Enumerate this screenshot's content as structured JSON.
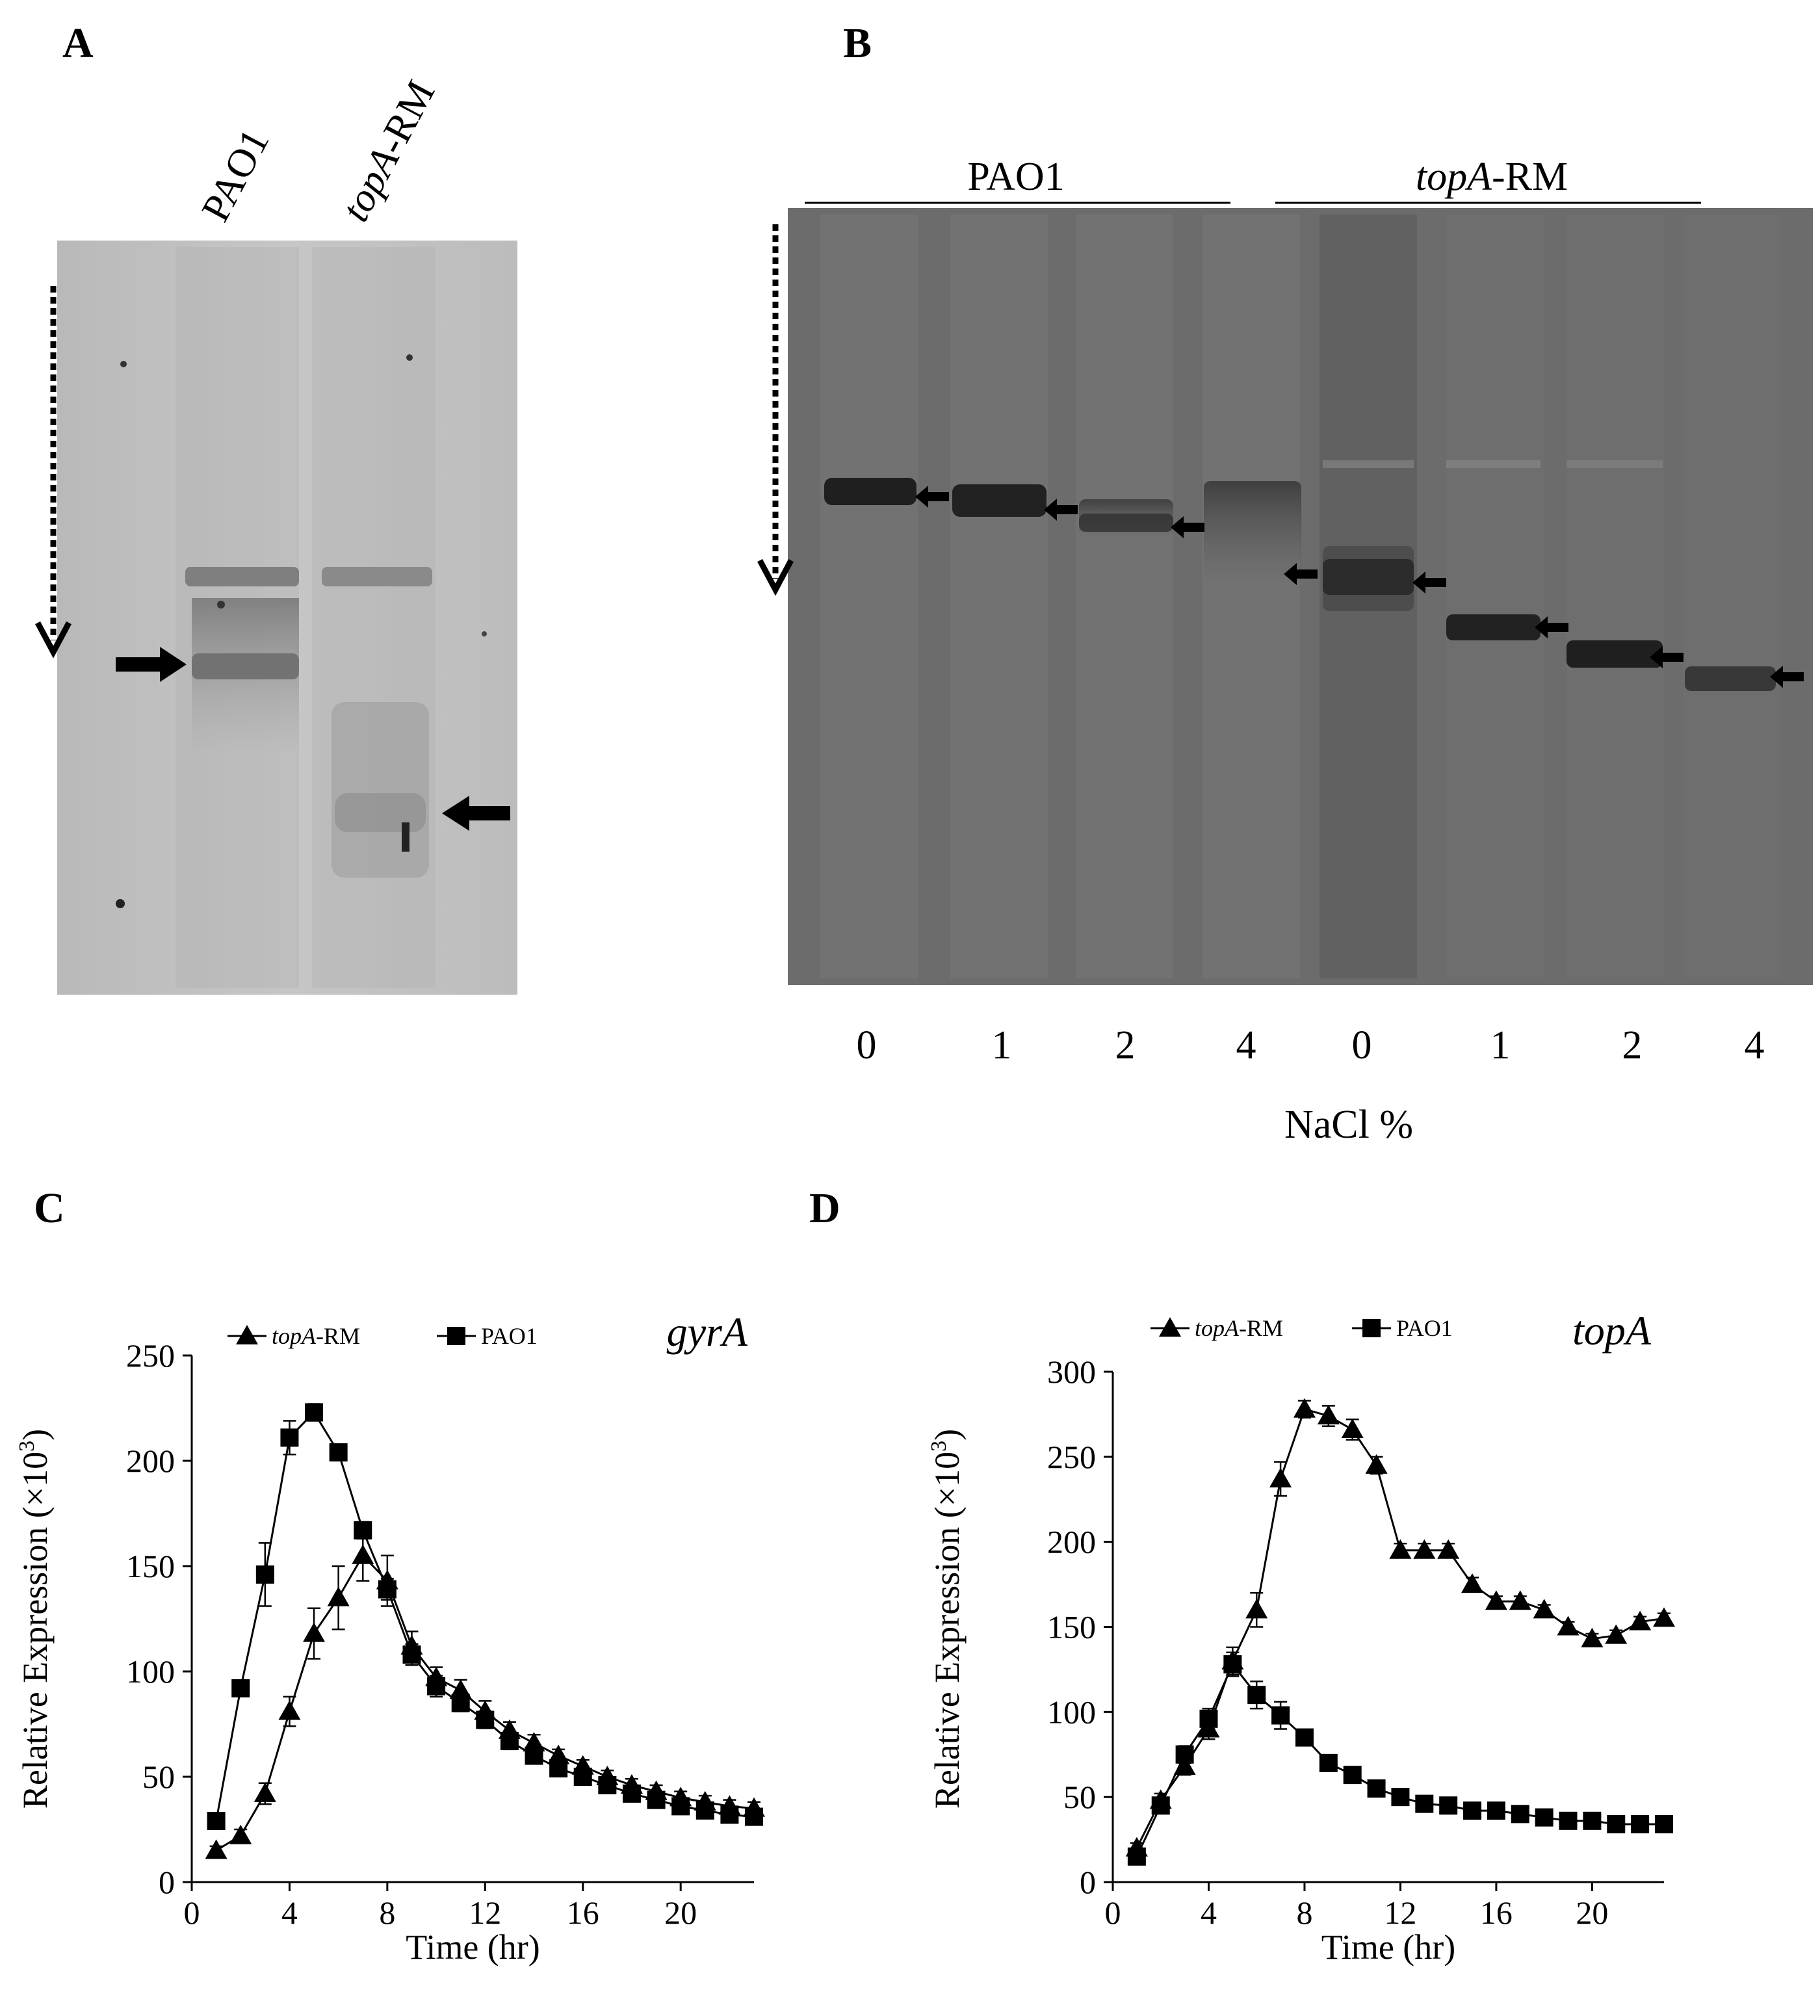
{
  "panels": {
    "A": {
      "letter": "A",
      "lane_labels": [
        {
          "italic": "",
          "rest": "PAO1"
        },
        {
          "italic": "topA",
          "rest": "-RM"
        }
      ]
    },
    "B": {
      "letter": "B",
      "groups": [
        {
          "italic": "",
          "rest": "PAO1"
        },
        {
          "italic": "topA",
          "rest": "-RM"
        }
      ],
      "lane_labels": [
        "0",
        "1",
        "2",
        "4",
        "0",
        "1",
        "2",
        "4"
      ],
      "xlabel": "NaCl %"
    },
    "C": {
      "letter": "C"
    },
    "D": {
      "letter": "D"
    }
  },
  "chart_data": [
    {
      "panel": "C",
      "type": "line",
      "gene": "gyrA",
      "xlabel": "Time (hr)",
      "ylabel_prefix": "Relative Expression (",
      "ylabel_times": "×10",
      "ylabel_exp": "3",
      "ylabel_suffix": ")",
      "xlim": [
        0,
        23
      ],
      "ylim": [
        0,
        250
      ],
      "xticks": [
        "0",
        "4",
        "8",
        "12",
        "16",
        "20"
      ],
      "xtick_values": [
        0,
        4,
        8,
        12,
        16,
        20
      ],
      "yticks": [
        "0",
        "50",
        "100",
        "150",
        "200",
        "250"
      ],
      "ytick_values": [
        0,
        50,
        100,
        150,
        200,
        250
      ],
      "legend": [
        {
          "italic": "topA",
          "rest": "-RM",
          "marker": "triangle"
        },
        {
          "italic": "",
          "rest": "PAO1",
          "marker": "square"
        }
      ],
      "series": [
        {
          "name": "topA-RM",
          "marker": "triangle",
          "x": [
            1,
            2,
            3,
            4,
            5,
            6,
            7,
            8,
            9,
            10,
            11,
            12,
            13,
            14,
            15,
            16,
            17,
            18,
            19,
            20,
            21,
            22,
            23
          ],
          "y": [
            15,
            22,
            42,
            81,
            118,
            135,
            155,
            143,
            112,
            97,
            91,
            81,
            72,
            66,
            60,
            55,
            50,
            46,
            43,
            40,
            38,
            36,
            35
          ],
          "err": [
            2,
            3,
            5,
            7,
            12,
            15,
            12,
            12,
            7,
            5,
            5,
            5,
            4,
            4,
            3,
            3,
            3,
            3,
            3,
            3,
            3,
            3,
            3
          ]
        },
        {
          "name": "PAO1",
          "marker": "square",
          "x": [
            1,
            2,
            3,
            4,
            5,
            6,
            7,
            8,
            9,
            10,
            11,
            12,
            13,
            14,
            15,
            16,
            17,
            18,
            19,
            20,
            21,
            22,
            23
          ],
          "y": [
            29,
            92,
            146,
            211,
            223,
            204,
            167,
            139,
            108,
            93,
            85,
            77,
            67,
            60,
            54,
            50,
            46,
            42,
            39,
            36,
            34,
            32,
            31
          ],
          "err": [
            2,
            3,
            15,
            8,
            4,
            3,
            4,
            5,
            5,
            5,
            4,
            4,
            4,
            3,
            3,
            3,
            3,
            3,
            3,
            3,
            3,
            3,
            3
          ]
        }
      ]
    },
    {
      "panel": "D",
      "type": "line",
      "gene": "topA",
      "xlabel": "Time (hr)",
      "ylabel_prefix": "Relative Expression (",
      "ylabel_times": "×10",
      "ylabel_exp": "3",
      "ylabel_suffix": ")",
      "xlim": [
        0,
        23
      ],
      "ylim": [
        0,
        300
      ],
      "xticks": [
        "0",
        "4",
        "8",
        "12",
        "16",
        "20"
      ],
      "xtick_values": [
        0,
        4,
        8,
        12,
        16,
        20
      ],
      "yticks": [
        "0",
        "50",
        "100",
        "150",
        "200",
        "250",
        "300"
      ],
      "ytick_values": [
        0,
        50,
        100,
        150,
        200,
        250,
        300
      ],
      "legend": [
        {
          "italic": "topA",
          "rest": "-RM",
          "marker": "triangle"
        },
        {
          "italic": "",
          "rest": "PAO1",
          "marker": "square"
        }
      ],
      "series": [
        {
          "name": "topA-RM",
          "marker": "triangle",
          "x": [
            1,
            2,
            3,
            4,
            5,
            6,
            7,
            8,
            9,
            10,
            11,
            12,
            13,
            14,
            15,
            16,
            17,
            18,
            19,
            20,
            21,
            22,
            23
          ],
          "y": [
            20,
            48,
            68,
            90,
            130,
            160,
            237,
            278,
            274,
            266,
            245,
            195,
            195,
            195,
            175,
            165,
            165,
            160,
            150,
            143,
            145,
            153,
            155
          ],
          "err": [
            3,
            4,
            5,
            6,
            8,
            10,
            10,
            5,
            6,
            6,
            5,
            4,
            4,
            4,
            4,
            3,
            3,
            3,
            3,
            3,
            3,
            3,
            3
          ]
        },
        {
          "name": "PAO1",
          "marker": "square",
          "x": [
            1,
            2,
            3,
            4,
            5,
            6,
            7,
            8,
            9,
            10,
            11,
            12,
            13,
            14,
            15,
            16,
            17,
            18,
            19,
            20,
            21,
            22,
            23
          ],
          "y": [
            15,
            45,
            75,
            96,
            128,
            110,
            98,
            85,
            70,
            63,
            55,
            50,
            46,
            45,
            42,
            42,
            40,
            38,
            36,
            36,
            34,
            34,
            34
          ],
          "err": [
            3,
            4,
            5,
            6,
            7,
            8,
            8,
            4,
            3,
            3,
            3,
            3,
            3,
            2,
            2,
            2,
            2,
            2,
            2,
            2,
            2,
            2,
            2
          ]
        }
      ]
    }
  ]
}
